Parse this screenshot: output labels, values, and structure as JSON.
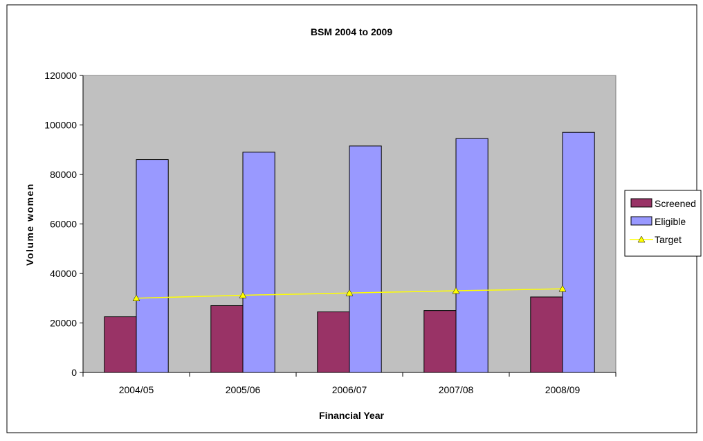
{
  "chart_data": {
    "type": "bar",
    "title": "BSM 2004 to 2009",
    "xlabel": "Financial Year",
    "ylabel": "Volume women",
    "categories": [
      "2004/05",
      "2005/06",
      "2006/07",
      "2007/08",
      "2008/09"
    ],
    "ylim": [
      0,
      120000
    ],
    "yticks": [
      "0",
      "20000",
      "40000",
      "60000",
      "80000",
      "100000",
      "120000"
    ],
    "grid": false,
    "legend_position": "right",
    "series": [
      {
        "name": "Screened",
        "kind": "bar",
        "color": "#993366",
        "values": [
          22500,
          27000,
          24500,
          25000,
          30500
        ]
      },
      {
        "name": "Eligible",
        "kind": "bar",
        "color": "#9999ff",
        "values": [
          86000,
          89000,
          91500,
          94500,
          97000
        ]
      },
      {
        "name": "Target",
        "kind": "line",
        "color": "#ffff00",
        "marker": "triangle",
        "values": [
          30000,
          31200,
          32100,
          33000,
          33800
        ]
      }
    ],
    "colors": {
      "plot_background": "#c0c0c0",
      "page_background": "#ffffff"
    }
  }
}
